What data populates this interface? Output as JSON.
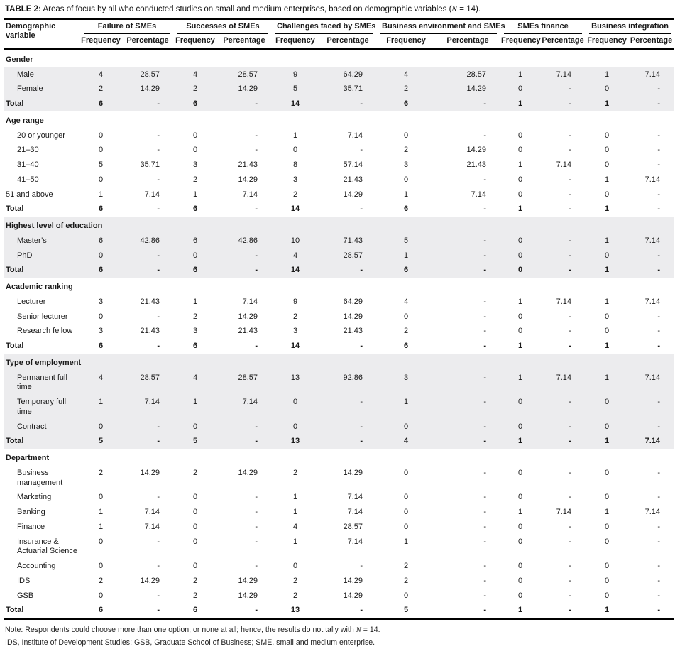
{
  "title": {
    "prefix": "TABLE 2:",
    "body": " Areas of focus by all who conducted studies on small and medium enterprises, based on demographic variables (",
    "n": "N",
    "suffix": " = 14)."
  },
  "colors": {
    "band": "#ececee",
    "line": "#000000",
    "text": "#1a1a1a"
  },
  "columns": {
    "demographic": "Demographic variable",
    "groups": [
      {
        "name": "Failure of SMEs"
      },
      {
        "name": "Successes of SMEs"
      },
      {
        "name": "Challenges faced by SMEs"
      },
      {
        "name": "Business environment and SMEs"
      },
      {
        "name": "SMEs finance"
      },
      {
        "name": "Business integration"
      }
    ],
    "sub": [
      "Frequency",
      "Percentage"
    ]
  },
  "sections": [
    {
      "header": "Gender",
      "shaded": true,
      "header_shaded": false,
      "nowrap": false,
      "rows": [
        {
          "label": "Male",
          "indent": true,
          "total": false,
          "values": [
            "4",
            "28.57",
            "4",
            "28.57",
            "9",
            "64.29",
            "4",
            "28.57",
            "1",
            "7.14",
            "1",
            "7.14"
          ]
        },
        {
          "label": "Female",
          "indent": true,
          "total": false,
          "values": [
            "2",
            "14.29",
            "2",
            "14.29",
            "5",
            "35.71",
            "2",
            "14.29",
            "0",
            "-",
            "0",
            "-"
          ]
        },
        {
          "label": "Total",
          "indent": false,
          "total": true,
          "values": [
            "6",
            "-",
            "6",
            "-",
            "14",
            "-",
            "6",
            "-",
            "1",
            "-",
            "1",
            "-"
          ]
        }
      ]
    },
    {
      "header": "Age range",
      "shaded": false,
      "header_shaded": false,
      "nowrap": false,
      "rows": [
        {
          "label": "20 or younger",
          "indent": true,
          "total": false,
          "values": [
            "0",
            "-",
            "0",
            "-",
            "1",
            "7.14",
            "0",
            "-",
            "0",
            "-",
            "0",
            "-"
          ]
        },
        {
          "label": "21–30",
          "indent": true,
          "total": false,
          "values": [
            "0",
            "-",
            "0",
            "-",
            "0",
            "-",
            "2",
            "14.29",
            "0",
            "-",
            "0",
            "-"
          ]
        },
        {
          "label": "31–40",
          "indent": true,
          "total": false,
          "values": [
            "5",
            "35.71",
            "3",
            "21.43",
            "8",
            "57.14",
            "3",
            "21.43",
            "1",
            "7.14",
            "0",
            "-"
          ]
        },
        {
          "label": "41–50",
          "indent": true,
          "total": false,
          "values": [
            "0",
            "-",
            "2",
            "14.29",
            "3",
            "21.43",
            "0",
            "-",
            "0",
            "-",
            "1",
            "7.14"
          ]
        },
        {
          "label": "51 and above",
          "indent": false,
          "total": false,
          "values": [
            "1",
            "7.14",
            "1",
            "7.14",
            "2",
            "14.29",
            "1",
            "7.14",
            "0",
            "-",
            "0",
            "-"
          ]
        },
        {
          "label": "Total",
          "indent": false,
          "total": true,
          "values": [
            "6",
            "-",
            "6",
            "-",
            "14",
            "-",
            "6",
            "-",
            "1",
            "-",
            "1",
            "-"
          ]
        }
      ]
    },
    {
      "header": "Highest level of education",
      "shaded": true,
      "header_shaded": true,
      "nowrap": true,
      "rows": [
        {
          "label": "Master’s",
          "indent": true,
          "total": false,
          "values": [
            "6",
            "42.86",
            "6",
            "42.86",
            "10",
            "71.43",
            "5",
            "-",
            "0",
            "-",
            "1",
            "7.14"
          ]
        },
        {
          "label": "PhD",
          "indent": true,
          "total": false,
          "values": [
            "0",
            "-",
            "0",
            "-",
            "4",
            "28.57",
            "1",
            "-",
            "0",
            "-",
            "0",
            "-"
          ]
        },
        {
          "label": "Total",
          "indent": false,
          "total": true,
          "values": [
            "6",
            "-",
            "6",
            "-",
            "14",
            "-",
            "6",
            "-",
            "0",
            "-",
            "1",
            "-"
          ]
        }
      ]
    },
    {
      "header": "Academic ranking",
      "shaded": false,
      "header_shaded": false,
      "nowrap": false,
      "rows": [
        {
          "label": "Lecturer",
          "indent": true,
          "total": false,
          "values": [
            "3",
            "21.43",
            "1",
            "7.14",
            "9",
            "64.29",
            "4",
            "-",
            "1",
            "7.14",
            "1",
            "7.14"
          ]
        },
        {
          "label": "Senior lecturer",
          "indent": true,
          "total": false,
          "values": [
            "0",
            "-",
            "2",
            "14.29",
            "2",
            "14.29",
            "0",
            "-",
            "0",
            "-",
            "0",
            "-"
          ]
        },
        {
          "label": "Research fellow",
          "indent": true,
          "total": false,
          "values": [
            "3",
            "21.43",
            "3",
            "21.43",
            "3",
            "21.43",
            "2",
            "-",
            "0",
            "-",
            "0",
            "-"
          ]
        },
        {
          "label": "Total",
          "indent": false,
          "total": true,
          "values": [
            "6",
            "-",
            "6",
            "-",
            "14",
            "-",
            "6",
            "-",
            "1",
            "-",
            "1",
            "-"
          ]
        }
      ]
    },
    {
      "header": "Type of employment",
      "shaded": true,
      "header_shaded": true,
      "nowrap": true,
      "rows": [
        {
          "label": "Permanent full time",
          "indent": true,
          "total": false,
          "values": [
            "4",
            "28.57",
            "4",
            "28.57",
            "13",
            "92.86",
            "3",
            "-",
            "1",
            "7.14",
            "1",
            "7.14"
          ]
        },
        {
          "label": "Temporary full time",
          "indent": true,
          "total": false,
          "values": [
            "1",
            "7.14",
            "1",
            "7.14",
            "0",
            "-",
            "1",
            "-",
            "0",
            "-",
            "0",
            "-"
          ]
        },
        {
          "label": "Contract",
          "indent": true,
          "total": false,
          "values": [
            "0",
            "-",
            "0",
            "-",
            "0",
            "-",
            "0",
            "-",
            "0",
            "-",
            "0",
            "-"
          ]
        },
        {
          "label": "Total",
          "indent": false,
          "total": true,
          "values": [
            "5",
            "-",
            "5",
            "-",
            "13",
            "-",
            "4",
            "-",
            "1",
            "-",
            "1",
            "7.14"
          ]
        }
      ]
    },
    {
      "header": "Department",
      "shaded": false,
      "header_shaded": false,
      "nowrap": false,
      "rows": [
        {
          "label": "Business management",
          "indent": true,
          "total": false,
          "values": [
            "2",
            "14.29",
            "2",
            "14.29",
            "2",
            "14.29",
            "0",
            "-",
            "0",
            "-",
            "0",
            "-"
          ]
        },
        {
          "label": "Marketing",
          "indent": true,
          "total": false,
          "values": [
            "0",
            "-",
            "0",
            "-",
            "1",
            "7.14",
            "0",
            "-",
            "0",
            "-",
            "0",
            "-"
          ]
        },
        {
          "label": "Banking",
          "indent": true,
          "total": false,
          "values": [
            "1",
            "7.14",
            "0",
            "-",
            "1",
            "7.14",
            "0",
            "-",
            "1",
            "7.14",
            "1",
            "7.14"
          ]
        },
        {
          "label": "Finance",
          "indent": true,
          "total": false,
          "values": [
            "1",
            "7.14",
            "0",
            "-",
            "4",
            "28.57",
            "0",
            "-",
            "0",
            "-",
            "0",
            "-"
          ]
        },
        {
          "label": "Insurance & Actuarial Science",
          "indent": true,
          "total": false,
          "values": [
            "0",
            "-",
            "0",
            "-",
            "1",
            "7.14",
            "1",
            "-",
            "0",
            "-",
            "0",
            "-"
          ]
        },
        {
          "label": "Accounting",
          "indent": true,
          "total": false,
          "values": [
            "0",
            "-",
            "0",
            "-",
            "0",
            "-",
            "2",
            "-",
            "0",
            "-",
            "0",
            "-"
          ]
        },
        {
          "label": "IDS",
          "indent": true,
          "total": false,
          "values": [
            "2",
            "14.29",
            "2",
            "14.29",
            "2",
            "14.29",
            "2",
            "-",
            "0",
            "-",
            "0",
            "-"
          ]
        },
        {
          "label": "GSB",
          "indent": true,
          "total": false,
          "values": [
            "0",
            "-",
            "2",
            "14.29",
            "2",
            "14.29",
            "0",
            "-",
            "0",
            "-",
            "0",
            "-"
          ]
        },
        {
          "label": "Total",
          "indent": false,
          "total": true,
          "values": [
            "6",
            "-",
            "6",
            "-",
            "13",
            "-",
            "5",
            "-",
            "1",
            "-",
            "1",
            "-"
          ]
        }
      ]
    }
  ],
  "notes": {
    "note1_pre": "Note: Respondents could choose more than one option, or none at all; hence, the results do not tally with ",
    "note1_n": "N",
    "note1_post": " = 14.",
    "note2": "IDS, Institute of Development Studies; GSB, Graduate School of Business; SME, small and medium enterprise."
  }
}
